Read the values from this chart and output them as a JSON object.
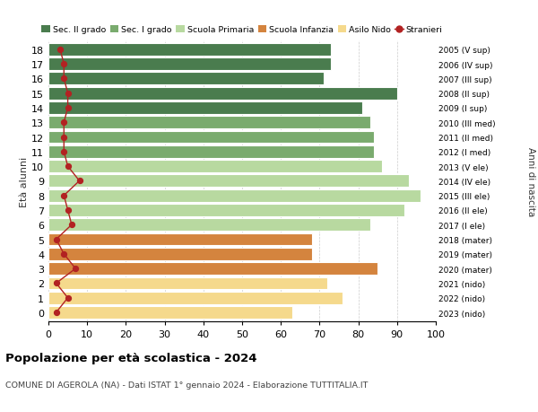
{
  "ages": [
    18,
    17,
    16,
    15,
    14,
    13,
    12,
    11,
    10,
    9,
    8,
    7,
    6,
    5,
    4,
    3,
    2,
    1,
    0
  ],
  "anni_nascita": [
    "2005 (V sup)",
    "2006 (IV sup)",
    "2007 (III sup)",
    "2008 (II sup)",
    "2009 (I sup)",
    "2010 (III med)",
    "2011 (II med)",
    "2012 (I med)",
    "2013 (V ele)",
    "2014 (IV ele)",
    "2015 (III ele)",
    "2016 (II ele)",
    "2017 (I ele)",
    "2018 (mater)",
    "2019 (mater)",
    "2020 (mater)",
    "2021 (nido)",
    "2022 (nido)",
    "2023 (nido)"
  ],
  "bar_values": [
    73,
    73,
    71,
    90,
    81,
    83,
    84,
    84,
    86,
    93,
    96,
    92,
    83,
    68,
    68,
    85,
    72,
    76,
    63
  ],
  "bar_colors": [
    "#4a7c4e",
    "#4a7c4e",
    "#4a7c4e",
    "#4a7c4e",
    "#4a7c4e",
    "#7aab6e",
    "#7aab6e",
    "#7aab6e",
    "#b8d9a0",
    "#b8d9a0",
    "#b8d9a0",
    "#b8d9a0",
    "#b8d9a0",
    "#d4843e",
    "#d4843e",
    "#d4843e",
    "#f5d98c",
    "#f5d98c",
    "#f5d98c"
  ],
  "stranieri_values": [
    3,
    4,
    4,
    5,
    5,
    4,
    4,
    4,
    5,
    8,
    4,
    5,
    6,
    2,
    4,
    7,
    2,
    5,
    2
  ],
  "stranieri_color": "#b22222",
  "legend_labels": [
    "Sec. II grado",
    "Sec. I grado",
    "Scuola Primaria",
    "Scuola Infanzia",
    "Asilo Nido",
    "Stranieri"
  ],
  "legend_colors": [
    "#4a7c4e",
    "#7aab6e",
    "#b8d9a0",
    "#d4843e",
    "#f5d98c",
    "#b22222"
  ],
  "ylabel_left": "Età alunni",
  "right_axis_label": "Anni di nascita",
  "title": "Popolazione per età scolastica - 2024",
  "subtitle": "COMUNE DI AGEROLA (NA) - Dati ISTAT 1° gennaio 2024 - Elaborazione TUTTITALIA.IT",
  "xlim": [
    0,
    100
  ],
  "xticks": [
    0,
    10,
    20,
    30,
    40,
    50,
    60,
    70,
    80,
    90,
    100
  ],
  "background_color": "#ffffff",
  "grid_color": "#cccccc"
}
